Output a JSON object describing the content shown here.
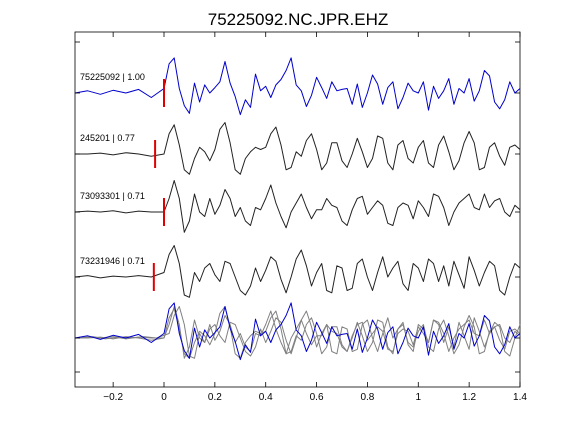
{
  "chart_data": {
    "type": "line",
    "title": "75225092.NC.JPR.EHZ",
    "xlabel": "",
    "ylabel": "",
    "xlim": [
      -0.35,
      1.4
    ],
    "x_ticks": [
      -0.2,
      0,
      0.2,
      0.4,
      0.6,
      0.8,
      1,
      1.2,
      1.4
    ],
    "x_tick_labels": [
      "−0.2",
      "0",
      "0.2",
      "0.4",
      "0.6",
      "0.8",
      "1",
      "1.2",
      "1.4"
    ],
    "grid": false,
    "pick_color": "#e00000",
    "stack_color": "#808080",
    "traces": [
      {
        "name": "75225092 | 1.00",
        "color": "#0000cc",
        "pick_time": 0.0,
        "onset": 0.0,
        "x": [
          -0.35,
          -0.3,
          -0.25,
          -0.2,
          -0.15,
          -0.1,
          -0.05,
          0.0,
          0.02,
          0.04,
          0.06,
          0.08,
          0.1,
          0.12,
          0.14,
          0.16,
          0.18,
          0.2,
          0.22,
          0.24,
          0.26,
          0.28,
          0.3,
          0.32,
          0.34,
          0.36,
          0.38,
          0.4,
          0.42,
          0.44,
          0.46,
          0.48,
          0.5,
          0.52,
          0.54,
          0.56,
          0.58,
          0.6,
          0.62,
          0.64,
          0.66,
          0.68,
          0.7,
          0.72,
          0.74,
          0.76,
          0.78,
          0.8,
          0.82,
          0.84,
          0.86,
          0.88,
          0.9,
          0.92,
          0.94,
          0.96,
          0.98,
          1.0,
          1.02,
          1.04,
          1.06,
          1.08,
          1.1,
          1.12,
          1.14,
          1.16,
          1.18,
          1.2,
          1.22,
          1.24,
          1.26,
          1.28,
          1.3,
          1.32,
          1.34,
          1.36,
          1.38,
          1.4
        ],
        "y": [
          0.0,
          0.05,
          -0.03,
          0.06,
          0.0,
          0.08,
          -0.1,
          0.1,
          0.65,
          0.78,
          0.1,
          -0.28,
          -0.45,
          0.22,
          -0.2,
          0.18,
          0.0,
          0.12,
          0.25,
          0.7,
          0.22,
          -0.08,
          -0.48,
          -0.15,
          -0.32,
          0.42,
          0.05,
          0.15,
          -0.1,
          0.18,
          0.3,
          0.5,
          0.78,
          0.18,
          0.05,
          -0.3,
          -0.05,
          0.35,
          0.12,
          -0.12,
          0.25,
          0.05,
          0.08,
          0.1,
          -0.25,
          0.2,
          -0.32,
          0.0,
          0.4,
          0.2,
          -0.25,
          0.12,
          0.25,
          -0.35,
          -0.1,
          0.22,
          0.05,
          0.0,
          0.25,
          -0.38,
          0.15,
          -0.12,
          0.05,
          0.32,
          -0.25,
          0.1,
          0.0,
          0.32,
          -0.18,
          0.05,
          0.5,
          0.38,
          -0.2,
          -0.35,
          -0.15,
          0.25,
          0.0,
          0.1
        ]
      },
      {
        "name": "245201 | 0.77",
        "color": "#222222",
        "pick_time": -0.035,
        "onset": 0.0,
        "x": [
          -0.35,
          -0.3,
          -0.25,
          -0.2,
          -0.15,
          -0.1,
          -0.05,
          0.0,
          0.02,
          0.04,
          0.06,
          0.08,
          0.1,
          0.12,
          0.14,
          0.16,
          0.18,
          0.2,
          0.22,
          0.24,
          0.26,
          0.28,
          0.3,
          0.32,
          0.34,
          0.36,
          0.38,
          0.4,
          0.42,
          0.44,
          0.46,
          0.48,
          0.5,
          0.52,
          0.54,
          0.56,
          0.58,
          0.6,
          0.62,
          0.64,
          0.66,
          0.68,
          0.7,
          0.72,
          0.74,
          0.76,
          0.78,
          0.8,
          0.82,
          0.84,
          0.86,
          0.88,
          0.9,
          0.92,
          0.94,
          0.96,
          0.98,
          1.0,
          1.02,
          1.04,
          1.06,
          1.08,
          1.1,
          1.12,
          1.14,
          1.16,
          1.18,
          1.2,
          1.22,
          1.24,
          1.26,
          1.28,
          1.3,
          1.32,
          1.34,
          1.36,
          1.38,
          1.4
        ],
        "y": [
          0.0,
          0.0,
          0.02,
          -0.02,
          0.03,
          0.0,
          -0.05,
          0.0,
          0.45,
          0.65,
          0.2,
          -0.35,
          -0.45,
          -0.1,
          0.15,
          0.05,
          -0.15,
          0.1,
          0.55,
          0.7,
          0.25,
          -0.35,
          -0.45,
          -0.1,
          0.05,
          0.15,
          0.1,
          0.15,
          0.45,
          0.6,
          0.2,
          -0.35,
          -0.3,
          0.05,
          -0.05,
          0.3,
          0.45,
          0.1,
          -0.35,
          -0.2,
          0.25,
          0.25,
          -0.15,
          -0.3,
          0.0,
          0.35,
          0.05,
          -0.3,
          -0.1,
          0.4,
          0.35,
          -0.2,
          -0.35,
          0.2,
          0.3,
          -0.1,
          -0.2,
          0.15,
          0.3,
          -0.2,
          -0.3,
          0.2,
          0.4,
          0.05,
          -0.35,
          -0.15,
          0.25,
          0.5,
          0.25,
          -0.35,
          -0.3,
          0.15,
          0.25,
          -0.05,
          -0.25,
          0.15,
          0.2,
          0.1
        ]
      },
      {
        "name": "73093301 | 0.71",
        "color": "#222222",
        "pick_time": 0.0,
        "onset": 0.0,
        "x": [
          -0.35,
          -0.3,
          -0.25,
          -0.2,
          -0.15,
          -0.1,
          -0.05,
          0.0,
          0.02,
          0.04,
          0.06,
          0.08,
          0.1,
          0.12,
          0.14,
          0.16,
          0.18,
          0.2,
          0.22,
          0.24,
          0.26,
          0.28,
          0.3,
          0.32,
          0.34,
          0.36,
          0.38,
          0.4,
          0.42,
          0.44,
          0.46,
          0.48,
          0.5,
          0.52,
          0.54,
          0.56,
          0.58,
          0.6,
          0.62,
          0.64,
          0.66,
          0.68,
          0.7,
          0.72,
          0.74,
          0.76,
          0.78,
          0.8,
          0.82,
          0.84,
          0.86,
          0.88,
          0.9,
          0.92,
          0.94,
          0.96,
          0.98,
          1.0,
          1.02,
          1.04,
          1.06,
          1.08,
          1.1,
          1.12,
          1.14,
          1.16,
          1.18,
          1.2,
          1.22,
          1.24,
          1.26,
          1.28,
          1.3,
          1.32,
          1.34,
          1.36,
          1.38,
          1.4
        ],
        "y": [
          0.0,
          0.02,
          0.0,
          0.03,
          -0.02,
          0.02,
          0.0,
          0.0,
          0.3,
          0.7,
          0.3,
          -0.45,
          -0.2,
          0.4,
          0.0,
          -0.1,
          0.3,
          -0.05,
          0.15,
          0.5,
          0.3,
          -0.1,
          0.1,
          -0.2,
          -0.3,
          0.1,
          0.05,
          0.3,
          0.6,
          0.2,
          -0.1,
          -0.35,
          0.0,
          0.2,
          0.4,
          0.1,
          -0.15,
          0.05,
          0.05,
          0.3,
          0.15,
          0.1,
          -0.2,
          -0.3,
          0.05,
          0.3,
          0.35,
          -0.05,
          0.1,
          0.25,
          0.15,
          -0.25,
          -0.3,
          0.1,
          0.2,
          0.15,
          -0.15,
          0.25,
          0.1,
          -0.1,
          0.4,
          0.35,
          0.1,
          -0.3,
          0.0,
          0.2,
          0.3,
          0.4,
          0.1,
          0.05,
          0.4,
          0.1,
          0.25,
          0.3,
          0.0,
          -0.1,
          0.15,
          0.05
        ]
      },
      {
        "name": "73231946 | 0.71",
        "color": "#222222",
        "pick_time": -0.04,
        "onset": -0.02,
        "x": [
          -0.35,
          -0.3,
          -0.25,
          -0.2,
          -0.15,
          -0.1,
          -0.05,
          0.0,
          0.02,
          0.04,
          0.06,
          0.08,
          0.1,
          0.12,
          0.14,
          0.16,
          0.18,
          0.2,
          0.22,
          0.24,
          0.26,
          0.28,
          0.3,
          0.32,
          0.34,
          0.36,
          0.38,
          0.4,
          0.42,
          0.44,
          0.46,
          0.48,
          0.5,
          0.52,
          0.54,
          0.56,
          0.58,
          0.6,
          0.62,
          0.64,
          0.66,
          0.68,
          0.7,
          0.72,
          0.74,
          0.76,
          0.78,
          0.8,
          0.82,
          0.84,
          0.86,
          0.88,
          0.9,
          0.92,
          0.94,
          0.96,
          0.98,
          1.0,
          1.02,
          1.04,
          1.06,
          1.08,
          1.1,
          1.12,
          1.14,
          1.16,
          1.18,
          1.2,
          1.22,
          1.24,
          1.26,
          1.28,
          1.3,
          1.32,
          1.34,
          1.36,
          1.38,
          1.4
        ],
        "y": [
          0.0,
          0.03,
          -0.02,
          0.02,
          0.0,
          0.03,
          0.0,
          0.1,
          0.5,
          0.7,
          0.3,
          -0.4,
          -0.45,
          0.1,
          -0.1,
          0.2,
          0.3,
          0.05,
          -0.1,
          0.35,
          0.3,
          0.0,
          -0.3,
          -0.4,
          -0.2,
          0.2,
          -0.1,
          0.15,
          0.45,
          0.35,
          -0.05,
          -0.35,
          0.0,
          0.4,
          0.6,
          0.25,
          -0.2,
          0.1,
          0.3,
          -0.3,
          -0.35,
          0.25,
          0.2,
          -0.3,
          -0.25,
          0.3,
          0.4,
          0.0,
          -0.3,
          0.1,
          0.45,
          0.0,
          0.2,
          0.35,
          -0.15,
          -0.3,
          0.3,
          0.2,
          -0.1,
          0.4,
          0.3,
          -0.1,
          0.25,
          -0.2,
          0.35,
          0.05,
          -0.25,
          0.45,
          0.15,
          -0.2,
          0.1,
          0.35,
          0.25,
          -0.3,
          -0.4,
          0.0,
          0.3,
          0.2
        ]
      }
    ]
  }
}
